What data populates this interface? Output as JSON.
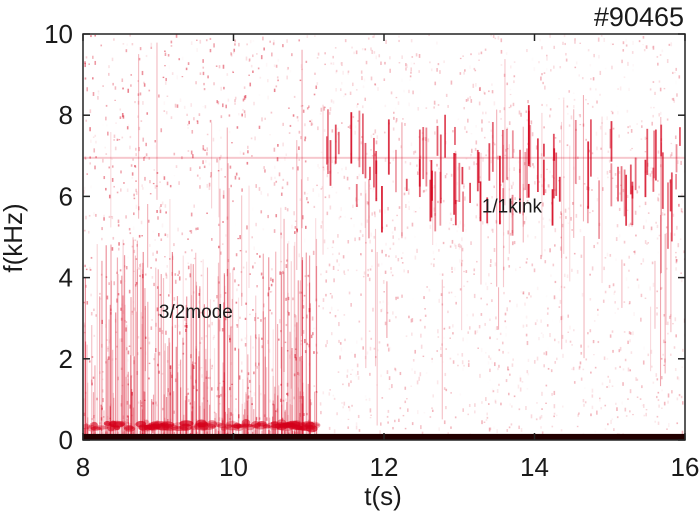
{
  "chart_data": {
    "type": "heatmap",
    "title": "#90465",
    "xlabel": "t(s)",
    "ylabel": "f(kHz)",
    "xlim": [
      8,
      16
    ],
    "ylim": [
      0,
      10
    ],
    "xticks": [
      8,
      10,
      12,
      14,
      16
    ],
    "yticks": [
      0,
      2,
      4,
      6,
      8,
      10
    ],
    "grid": false,
    "colormap": {
      "low": "#ffffff",
      "high": "#d4001a"
    },
    "annotations": [
      {
        "text": "3/2mode",
        "x": 9.5,
        "y": 3.0
      },
      {
        "text": "1/1kink",
        "x": 13.7,
        "y": 5.6
      }
    ],
    "features": {
      "low_frequency_band": {
        "f_max": 0.15,
        "t_range": [
          8,
          16
        ]
      },
      "spot_band": {
        "f_center": 0.35,
        "t_range": [
          8,
          11.1
        ]
      },
      "mode_3_2": {
        "t_range": [
          8,
          11.1
        ],
        "f_range": [
          0.2,
          5.0
        ]
      },
      "kink_1_1": {
        "t_range": [
          11.2,
          16
        ],
        "f_range": [
          5.5,
          7.5
        ],
        "line_f": 6.95
      },
      "line_7khz": {
        "f": 6.95,
        "t_range": [
          8,
          11.2
        ]
      }
    }
  }
}
